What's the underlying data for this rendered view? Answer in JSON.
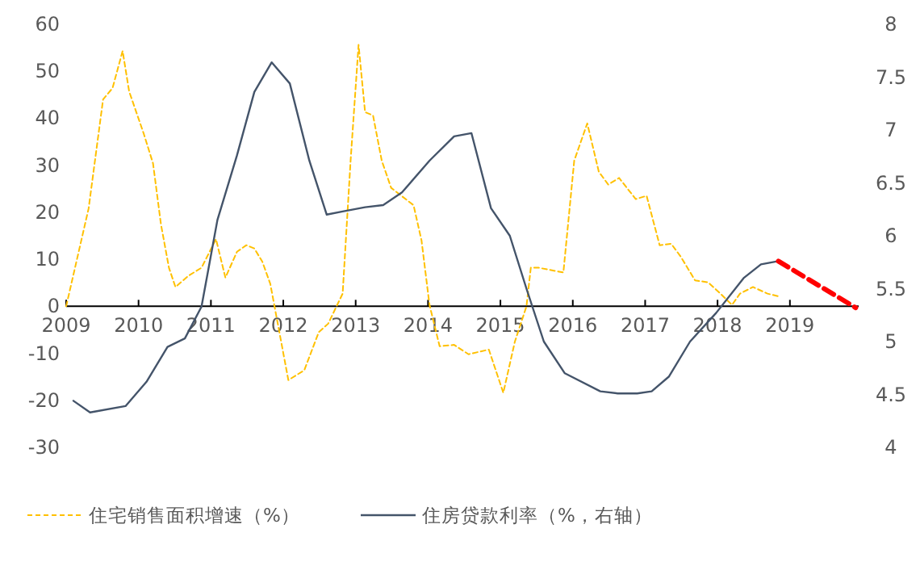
{
  "chart_data": {
    "type": "line",
    "xlim": [
      2009,
      2019.95
    ],
    "xticks": [
      2009,
      2010,
      2011,
      2012,
      2013,
      2014,
      2015,
      2016,
      2017,
      2018,
      2019
    ],
    "ylim": [
      -30,
      60
    ],
    "yticks": [
      -30,
      -20,
      -10,
      0,
      10,
      20,
      30,
      40,
      50,
      60
    ],
    "y2lim": [
      4,
      8
    ],
    "y2ticks": [
      4,
      4.5,
      5,
      5.5,
      6,
      6.5,
      7,
      7.5,
      8
    ],
    "legend": "bottom",
    "grid": false,
    "series": [
      {
        "name": "住宅销售面积增速（%）",
        "color": "#ffc000",
        "line_style": "dashed",
        "x": [
          2009.0,
          2009.31,
          2009.51,
          2009.64,
          2009.78,
          2009.87,
          2010.07,
          2010.2,
          2010.31,
          2010.42,
          2010.51,
          2010.69,
          2010.87,
          2011.07,
          2011.2,
          2011.36,
          2011.49,
          2011.6,
          2011.71,
          2011.82,
          2012.07,
          2012.29,
          2012.49,
          2012.62,
          2012.82,
          2012.93,
          2013.04,
          2013.13,
          2013.24,
          2013.36,
          2013.49,
          2013.8,
          2013.91,
          2014.02,
          2014.16,
          2014.36,
          2014.56,
          2014.84,
          2015.04,
          2015.2,
          2015.36,
          2015.42,
          2015.53,
          2015.87,
          2016.02,
          2016.2,
          2016.36,
          2016.49,
          2016.64,
          2016.87,
          2017.02,
          2017.2,
          2017.36,
          2017.49,
          2017.69,
          2017.87,
          2018.04,
          2018.2,
          2018.31,
          2018.49,
          2018.69,
          2018.87
        ],
        "values": [
          0,
          20.8,
          44,
          46.4,
          54.3,
          45.7,
          36.8,
          30.4,
          17.4,
          8.2,
          4.1,
          6.5,
          8.2,
          14.3,
          6.1,
          11.6,
          13,
          12.3,
          9.5,
          4.8,
          -15.7,
          -13.6,
          -5.5,
          -3.7,
          2.7,
          31,
          55.6,
          41.3,
          40.6,
          31,
          25.2,
          21.5,
          14,
          0.3,
          -8.5,
          -8.2,
          -10.2,
          -9.2,
          -18.4,
          -7.5,
          0,
          8.2,
          8.2,
          7.2,
          31,
          38.9,
          28.6,
          25.9,
          27.3,
          22.8,
          23.5,
          13,
          13.3,
          10.6,
          5.5,
          5.1,
          2.7,
          0.3,
          2.7,
          4.1,
          2.7,
          2
        ]
      },
      {
        "name": "住房贷款利率（%，右轴）",
        "color": "#44546a",
        "line_style": "solid",
        "axis": "y2",
        "x": [
          2009.1,
          2009.33,
          2009.82,
          2010.11,
          2010.4,
          2010.64,
          2010.87,
          2011.09,
          2011.36,
          2011.6,
          2011.84,
          2012.09,
          2012.36,
          2012.6,
          2012.82,
          2013.13,
          2013.38,
          2013.64,
          2014.02,
          2014.36,
          2014.6,
          2014.87,
          2015.13,
          2015.36,
          2015.6,
          2015.89,
          2016.38,
          2016.62,
          2016.89,
          2017.09,
          2017.33,
          2017.62,
          2017.98,
          2018.36,
          2018.6,
          2018.84
        ],
        "values": [
          4.44,
          4.33,
          4.39,
          4.62,
          4.95,
          5.03,
          5.33,
          6.15,
          6.76,
          7.36,
          7.64,
          7.44,
          6.71,
          6.2,
          6.23,
          6.27,
          6.29,
          6.41,
          6.71,
          6.94,
          6.97,
          6.26,
          6,
          5.5,
          5,
          4.7,
          4.53,
          4.51,
          4.51,
          4.53,
          4.67,
          5,
          5.27,
          5.6,
          5.73,
          5.76
        ]
      },
      {
        "color": "#ff0000",
        "line_style": "dashed",
        "axis": "y2",
        "x": [
          2018.84,
          2019.91
        ],
        "values": [
          5.76,
          5.32
        ]
      }
    ]
  }
}
